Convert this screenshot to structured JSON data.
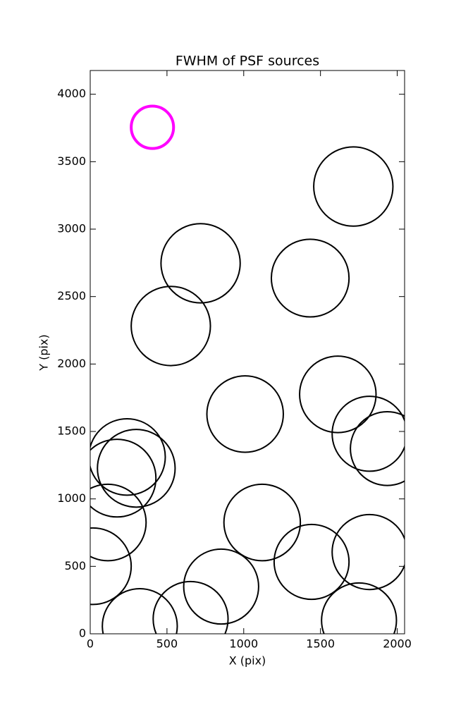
{
  "chart_data": {
    "type": "scatter",
    "title": "FWHM of PSF sources",
    "x_label": "X (pix)",
    "y_label": "Y (pix)",
    "xlim": [
      0,
      2048
    ],
    "ylim": [
      0,
      4176
    ],
    "xticks": [
      0,
      500,
      1000,
      1500,
      2000
    ],
    "yticks": [
      0,
      500,
      1000,
      1500,
      2000,
      2500,
      3000,
      3500,
      4000
    ],
    "grid": false,
    "series": [
      {
        "color": "#ff00ff",
        "x": [
          405
        ],
        "y": [
          3755
        ],
        "sizes": [
          138
        ]
      },
      {
        "color": "#000000",
        "x": [
          1714,
          719,
          1433,
          525,
          1009,
          1613,
          1820,
          1935,
          240,
          300,
          175,
          115,
          18,
          1120,
          1442,
          1820,
          853,
          1751,
          323,
          654
        ],
        "y": [
          3316,
          2747,
          2637,
          2282,
          1629,
          1775,
          1483,
          1373,
          1311,
          1227,
          1154,
          825,
          501,
          825,
          533,
          606,
          350,
          99,
          57,
          110
        ],
        "sizes": [
          258,
          258,
          253,
          258,
          249,
          249,
          244,
          240,
          249,
          253,
          253,
          249,
          249,
          249,
          244,
          244,
          244,
          244,
          244,
          244
        ]
      }
    ]
  }
}
